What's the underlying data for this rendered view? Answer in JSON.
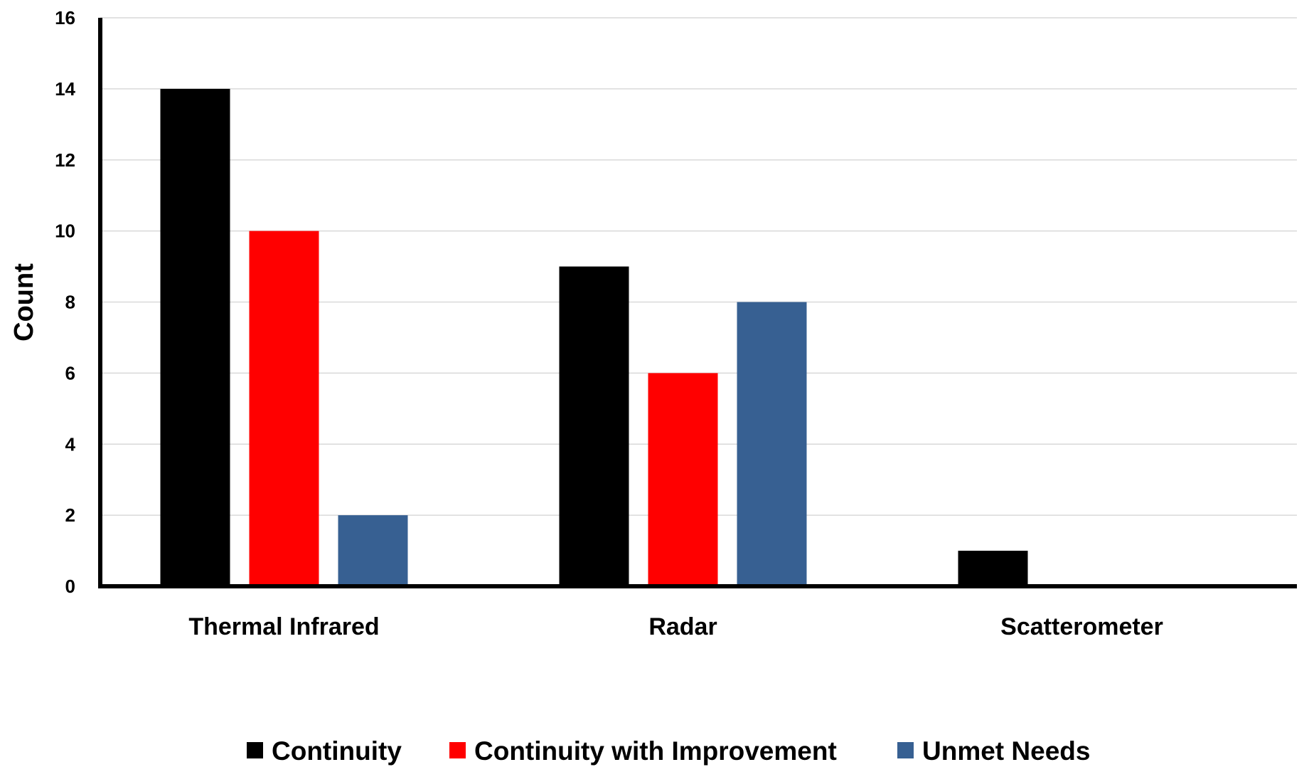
{
  "chart_data": {
    "type": "bar",
    "title": "",
    "xlabel": "",
    "ylabel": "Count",
    "ylim": [
      0,
      16
    ],
    "yticks": [
      0,
      2,
      4,
      6,
      8,
      10,
      12,
      14,
      16
    ],
    "grid": true,
    "legend_position": "bottom",
    "categories": [
      "Thermal Infrared",
      "Radar",
      "Scatterometer"
    ],
    "series": [
      {
        "name": "Continuity",
        "color": "#000000",
        "values": [
          14,
          9,
          1
        ]
      },
      {
        "name": "Continuity with Improvement",
        "color": "#ff0000",
        "values": [
          10,
          6,
          0
        ]
      },
      {
        "name": "Unmet Needs",
        "color": "#376092",
        "values": [
          2,
          8,
          0
        ]
      }
    ]
  }
}
